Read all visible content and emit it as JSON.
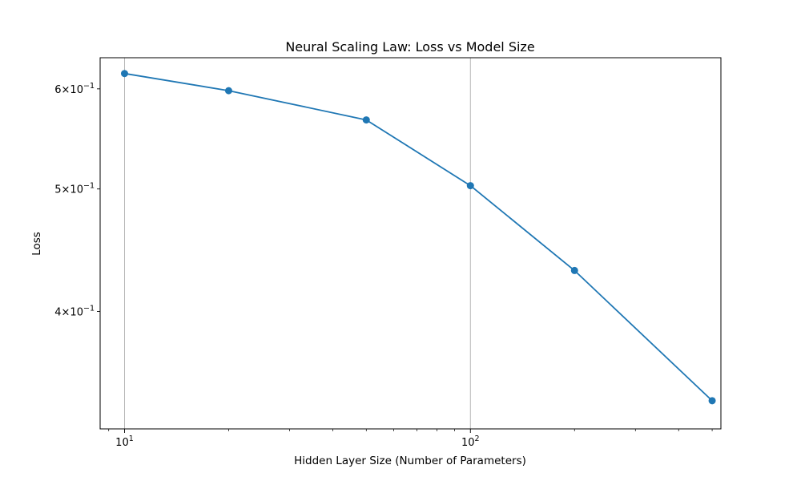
{
  "chart_data": {
    "type": "line",
    "title": "Neural Scaling Law: Loss vs Model Size",
    "xlabel": "Hidden Layer Size (Number of Parameters)",
    "ylabel": "Loss",
    "x_scale": "log",
    "y_scale": "log",
    "xlim": [
      8.5,
      530
    ],
    "ylim": [
      0.323,
      0.635
    ],
    "x_ticks": [
      {
        "value": 10,
        "base": "10",
        "exp": "1"
      },
      {
        "value": 100,
        "base": "10",
        "exp": "2"
      }
    ],
    "y_ticks": [
      {
        "value": 0.6,
        "mantissa": "6",
        "base": "10",
        "exp": "−1"
      },
      {
        "value": 0.5,
        "mantissa": "5",
        "base": "10",
        "exp": "−1"
      },
      {
        "value": 0.4,
        "mantissa": "4",
        "base": "10",
        "exp": "−1"
      }
    ],
    "grid": "x-major",
    "series": [
      {
        "color": "#1f77b4",
        "marker": "circle",
        "x": [
          10,
          20,
          50,
          100,
          200,
          500
        ],
        "y": [
          0.617,
          0.598,
          0.567,
          0.503,
          0.431,
          0.34
        ]
      }
    ]
  }
}
